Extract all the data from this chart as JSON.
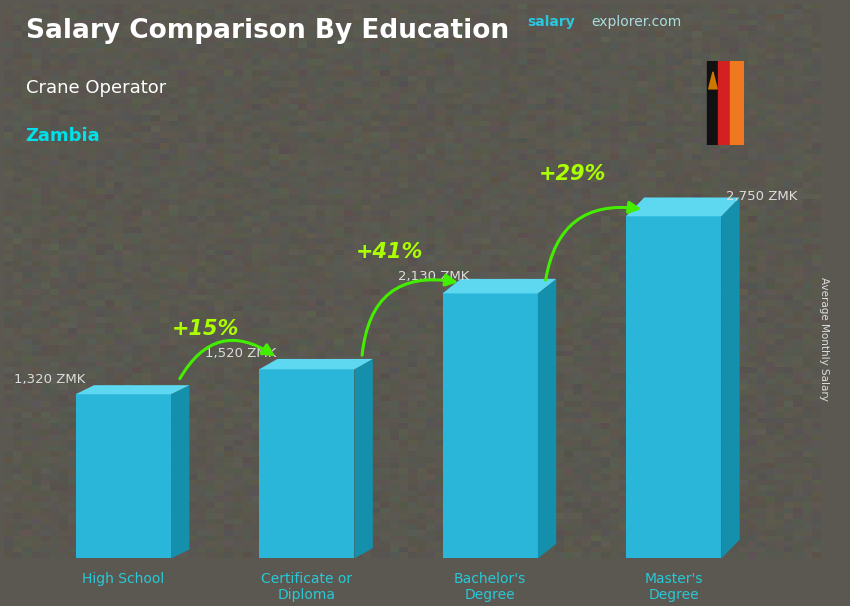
{
  "title_main": "Salary Comparison By Education",
  "subtitle1": "Crane Operator",
  "subtitle2": "Zambia",
  "ylabel": "Average Monthly Salary",
  "website_salary": "salary",
  "website_rest": "explorer.com",
  "categories": [
    "High School",
    "Certificate or\nDiploma",
    "Bachelor's\nDegree",
    "Master's\nDegree"
  ],
  "values": [
    1320,
    1520,
    2130,
    2750
  ],
  "value_labels": [
    "1,320 ZMK",
    "1,520 ZMK",
    "2,130 ZMK",
    "2,750 ZMK"
  ],
  "pct_labels": [
    "+15%",
    "+41%",
    "+29%"
  ],
  "bar_color_main": "#29b6d8",
  "bar_color_top": "#5dd8f0",
  "bar_color_side": "#1590ac",
  "pct_color": "#aaff00",
  "bg_color": "#5a5850",
  "text_color_white": "#ffffff",
  "text_color_cyan": "#00e0e8",
  "text_color_label": "#dddddd",
  "text_color_xtick": "#29c8d8",
  "arrow_color": "#44ee00",
  "fig_width": 8.5,
  "fig_height": 6.06,
  "bar_width": 0.52,
  "zambia_green": "#5aaa10",
  "zambia_black": "#111111",
  "zambia_red": "#d42020",
  "zambia_orange": "#f07820"
}
